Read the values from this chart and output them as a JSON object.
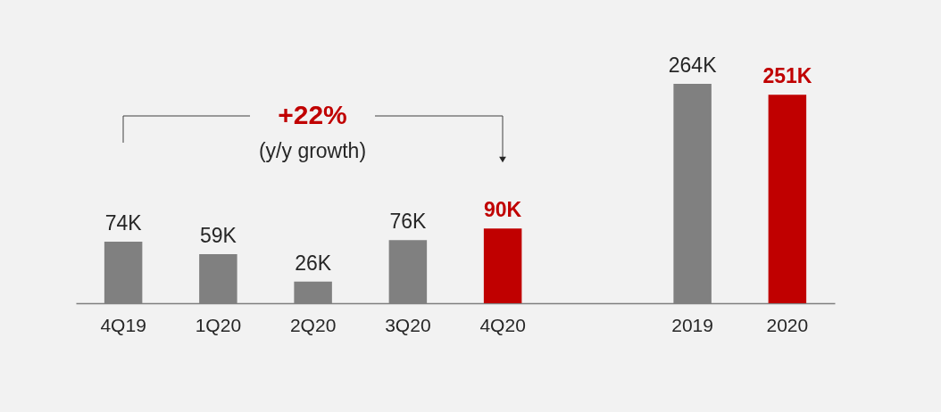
{
  "chart_data": {
    "type": "bar",
    "categories": [
      "4Q19",
      "1Q20",
      "2Q20",
      "3Q20",
      "4Q20",
      null,
      "2019",
      "2020"
    ],
    "values": [
      74,
      59,
      26,
      76,
      90,
      null,
      264,
      251
    ],
    "value_labels": [
      "74K",
      "59K",
      "26K",
      "76K",
      "90K",
      null,
      "264K",
      "251K"
    ],
    "colors": [
      "#808080",
      "#808080",
      "#808080",
      "#808080",
      "#c00000",
      null,
      "#808080",
      "#c00000"
    ],
    "annotations": [
      "+22%",
      "(y/y growth)"
    ],
    "grid": false
  }
}
